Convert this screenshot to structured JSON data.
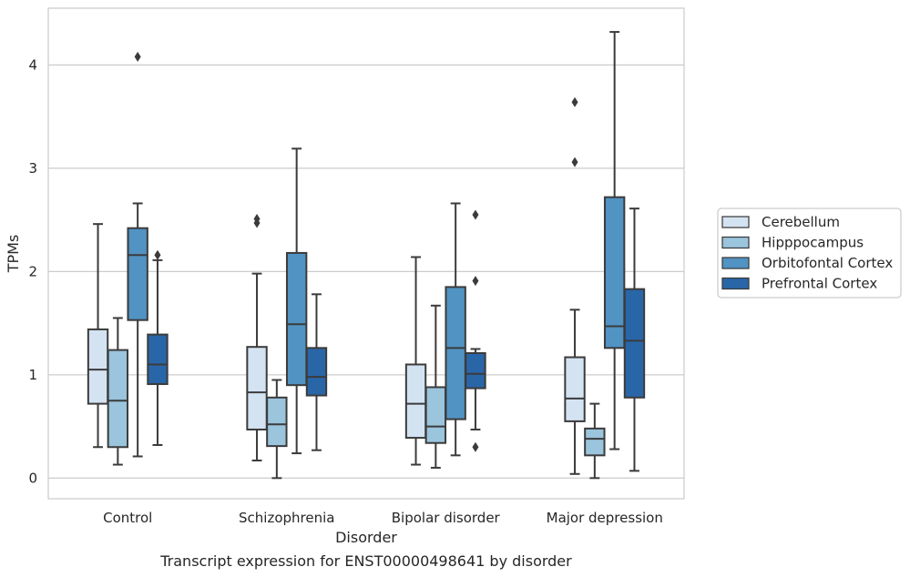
{
  "chart_data": {
    "type": "boxplot",
    "caption": "Transcript expression for ENST00000498641 by disorder",
    "xlabel": "Disorder",
    "ylabel": "TPMs",
    "ylim": [
      -0.2,
      4.55
    ],
    "yticks": [
      0,
      1,
      2,
      3,
      4
    ],
    "grid": "horizontal",
    "legend_position": "right",
    "categories": [
      "Control",
      "Schizophrenia",
      "Bipolar disorder",
      "Major depression"
    ],
    "series": [
      {
        "name": "Cerebellum",
        "color": "#d4e3f2",
        "boxes": [
          {
            "whisker_low": 0.3,
            "q1": 0.72,
            "median": 1.05,
            "q3": 1.44,
            "whisker_high": 2.46,
            "outliers": []
          },
          {
            "whisker_low": 0.17,
            "q1": 0.47,
            "median": 0.83,
            "q3": 1.27,
            "whisker_high": 1.98,
            "outliers": [
              2.47,
              2.51
            ]
          },
          {
            "whisker_low": 0.13,
            "q1": 0.39,
            "median": 0.72,
            "q3": 1.1,
            "whisker_high": 2.14,
            "outliers": []
          },
          {
            "whisker_low": 0.04,
            "q1": 0.55,
            "median": 0.77,
            "q3": 1.17,
            "whisker_high": 1.63,
            "outliers": [
              3.06,
              3.64
            ]
          }
        ]
      },
      {
        "name": "Hipppocampus",
        "color": "#9bc4dd",
        "boxes": [
          {
            "whisker_low": 0.13,
            "q1": 0.3,
            "median": 0.75,
            "q3": 1.24,
            "whisker_high": 1.55,
            "outliers": []
          },
          {
            "whisker_low": 0.0,
            "q1": 0.31,
            "median": 0.52,
            "q3": 0.78,
            "whisker_high": 0.95,
            "outliers": []
          },
          {
            "whisker_low": 0.1,
            "q1": 0.34,
            "median": 0.5,
            "q3": 0.88,
            "whisker_high": 1.67,
            "outliers": []
          },
          {
            "whisker_low": 0.0,
            "q1": 0.22,
            "median": 0.38,
            "q3": 0.48,
            "whisker_high": 0.72,
            "outliers": []
          }
        ]
      },
      {
        "name": "Orbitofontal Cortex",
        "color": "#5193c3",
        "boxes": [
          {
            "whisker_low": 0.21,
            "q1": 1.53,
            "median": 2.16,
            "q3": 2.42,
            "whisker_high": 2.66,
            "outliers": [
              4.08
            ]
          },
          {
            "whisker_low": 0.24,
            "q1": 0.9,
            "median": 1.49,
            "q3": 2.18,
            "whisker_high": 3.19,
            "outliers": []
          },
          {
            "whisker_low": 0.22,
            "q1": 0.57,
            "median": 1.26,
            "q3": 1.85,
            "whisker_high": 2.66,
            "outliers": []
          },
          {
            "whisker_low": 0.28,
            "q1": 1.26,
            "median": 1.47,
            "q3": 2.72,
            "whisker_high": 4.32,
            "outliers": []
          }
        ]
      },
      {
        "name": "Prefrontal Cortex",
        "color": "#2966a8",
        "boxes": [
          {
            "whisker_low": 0.32,
            "q1": 0.91,
            "median": 1.1,
            "q3": 1.39,
            "whisker_high": 2.11,
            "outliers": [
              2.16
            ]
          },
          {
            "whisker_low": 0.27,
            "q1": 0.8,
            "median": 0.98,
            "q3": 1.26,
            "whisker_high": 1.78,
            "outliers": []
          },
          {
            "whisker_low": 0.47,
            "q1": 0.87,
            "median": 1.01,
            "q3": 1.21,
            "whisker_high": 1.25,
            "outliers": [
              0.3,
              1.91,
              2.55
            ]
          },
          {
            "whisker_low": 0.07,
            "q1": 0.78,
            "median": 1.33,
            "q3": 1.83,
            "whisker_high": 2.61,
            "outliers": []
          }
        ]
      }
    ]
  }
}
